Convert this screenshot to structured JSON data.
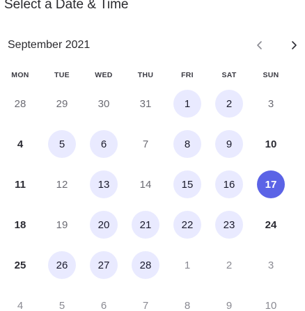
{
  "header": {
    "title": "Select a Date & Time"
  },
  "calendar": {
    "month_label": "September 2021",
    "weekdays": [
      "MON",
      "TUE",
      "WED",
      "THU",
      "FRI",
      "SAT",
      "SUN"
    ],
    "weeks": [
      [
        {
          "label": "28",
          "state": "muted"
        },
        {
          "label": "29",
          "state": "muted"
        },
        {
          "label": "30",
          "state": "muted"
        },
        {
          "label": "31",
          "state": "muted"
        },
        {
          "label": "1",
          "state": "avail"
        },
        {
          "label": "2",
          "state": "avail"
        },
        {
          "label": "3",
          "state": "muted"
        }
      ],
      [
        {
          "label": "4",
          "state": "bold"
        },
        {
          "label": "5",
          "state": "avail"
        },
        {
          "label": "6",
          "state": "avail"
        },
        {
          "label": "7",
          "state": "muted"
        },
        {
          "label": "8",
          "state": "avail"
        },
        {
          "label": "9",
          "state": "avail"
        },
        {
          "label": "10",
          "state": "bold"
        }
      ],
      [
        {
          "label": "11",
          "state": "bold"
        },
        {
          "label": "12",
          "state": "muted"
        },
        {
          "label": "13",
          "state": "avail"
        },
        {
          "label": "14",
          "state": "muted"
        },
        {
          "label": "15",
          "state": "avail"
        },
        {
          "label": "16",
          "state": "avail"
        },
        {
          "label": "17",
          "state": "selected"
        }
      ],
      [
        {
          "label": "18",
          "state": "bold"
        },
        {
          "label": "19",
          "state": "muted"
        },
        {
          "label": "20",
          "state": "avail"
        },
        {
          "label": "21",
          "state": "avail"
        },
        {
          "label": "22",
          "state": "avail"
        },
        {
          "label": "23",
          "state": "avail"
        },
        {
          "label": "24",
          "state": "bold"
        }
      ],
      [
        {
          "label": "25",
          "state": "bold"
        },
        {
          "label": "26",
          "state": "avail"
        },
        {
          "label": "27",
          "state": "avail"
        },
        {
          "label": "28",
          "state": "avail"
        },
        {
          "label": "1",
          "state": "dim"
        },
        {
          "label": "2",
          "state": "dim"
        },
        {
          "label": "3",
          "state": "dim"
        }
      ],
      [
        {
          "label": "4",
          "state": "dim"
        },
        {
          "label": "5",
          "state": "dim"
        },
        {
          "label": "6",
          "state": "dim"
        },
        {
          "label": "7",
          "state": "dim"
        },
        {
          "label": "8",
          "state": "dim"
        },
        {
          "label": "9",
          "state": "dim"
        },
        {
          "label": "10",
          "state": "dim"
        }
      ]
    ]
  },
  "nav": {
    "prev_icon": "chevron-left-icon",
    "next_icon": "chevron-right-icon"
  },
  "colors": {
    "accent": "#5b63e6",
    "available_bg": "#e9eaff"
  }
}
